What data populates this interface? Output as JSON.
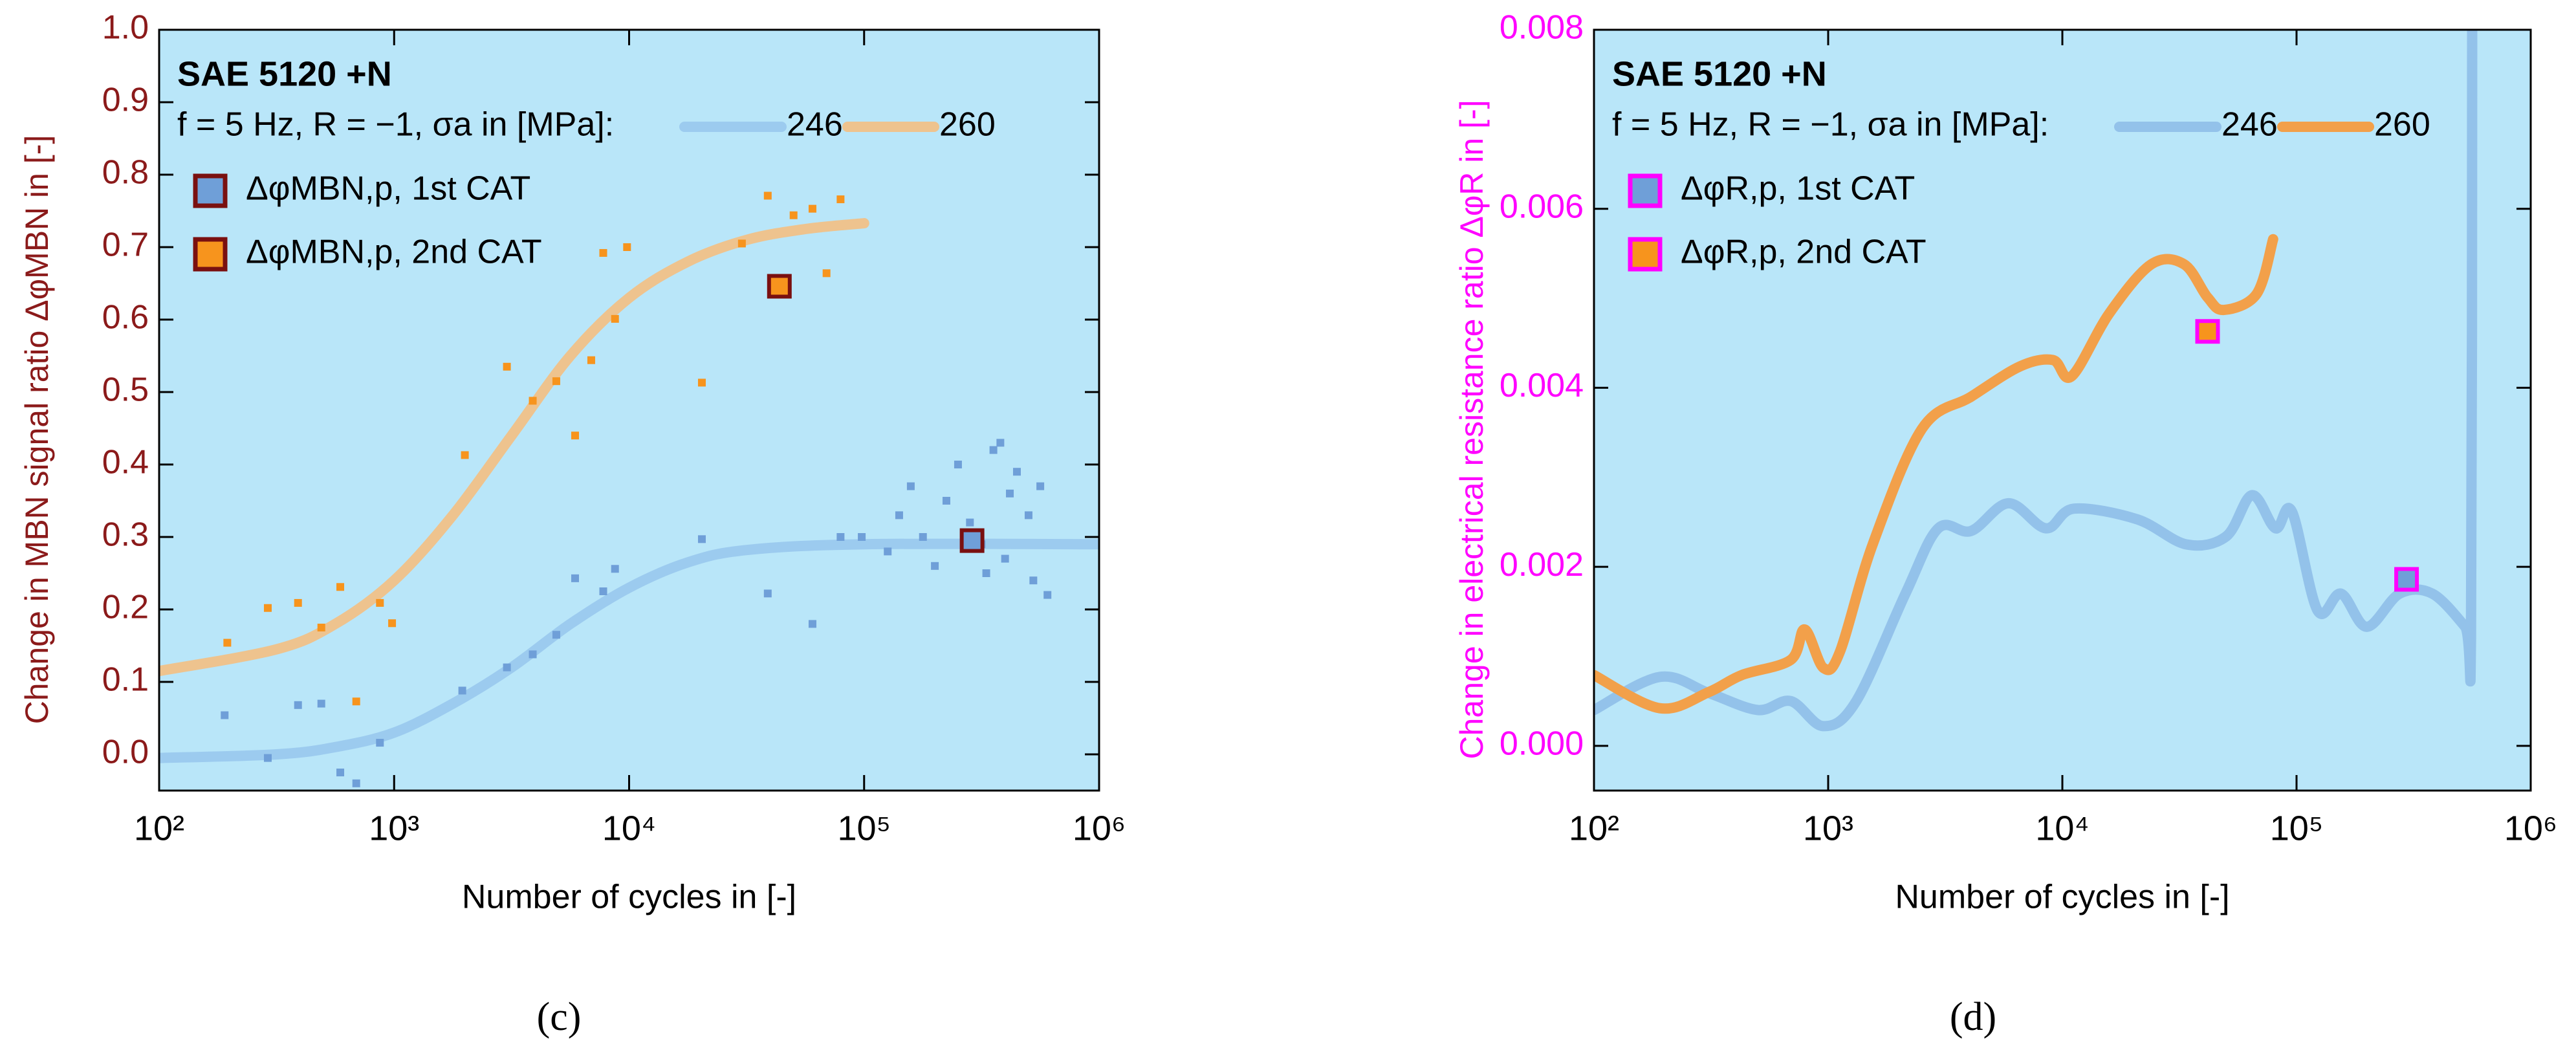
{
  "chart_data": [
    {
      "type": "scatter",
      "panel_label": "(c)",
      "legend_title": "SAE 5120 +N",
      "legend_text": "f = 5 Hz, R = −1, σa in [MPa]:",
      "x_label": "Number of cycles in [-]",
      "y_label": "Change in MBN signal ratio ΔφMBN in [-]",
      "y_color": "#8b1a1a",
      "marker_edge": "#7a1010",
      "background": "#b9e6f9",
      "xscale": "log",
      "xlim": [
        100,
        1000000
      ],
      "xticks": [
        {
          "value": 100,
          "label": "10²"
        },
        {
          "value": 1000,
          "label": "10³"
        },
        {
          "value": 10000,
          "label": "10⁴"
        },
        {
          "value": 100000,
          "label": "10⁵"
        },
        {
          "value": 1000000,
          "label": "10⁶"
        }
      ],
      "ylim": [
        -0.05,
        1.0
      ],
      "yticks": [
        {
          "value": 0,
          "label": "0.0"
        },
        0.1,
        0.2,
        0.3,
        0.4,
        0.5,
        0.6,
        0.7,
        0.8,
        0.9,
        {
          "value": 1,
          "label": "1.0"
        }
      ],
      "series": [
        {
          "name": "246",
          "style": "line",
          "color": "#9ccbef",
          "x": [
            100,
            316,
            562,
            1000,
            1778,
            3162,
            5623,
            10000,
            17783,
            31623,
            100000,
            1000000
          ],
          "values": [
            -0.005,
            0.0,
            0.01,
            0.03,
            0.07,
            0.12,
            0.18,
            0.23,
            0.265,
            0.282,
            0.29,
            0.29
          ]
        },
        {
          "name": "260",
          "style": "line",
          "color": "#eec38e",
          "x": [
            100,
            316,
            562,
            1000,
            1778,
            3162,
            5623,
            10000,
            17783,
            31623,
            56234,
            100000
          ],
          "values": [
            0.115,
            0.145,
            0.18,
            0.24,
            0.33,
            0.44,
            0.55,
            0.63,
            0.68,
            0.71,
            0.725,
            0.733
          ]
        },
        {
          "style": "points",
          "color": "#6f9fd8",
          "x": [
            190,
            290,
            390,
            490,
            590,
            690,
            870,
            1950,
            3020,
            3890,
            4900,
            5890,
            7760,
            8710,
            20400,
            38900,
            60300,
            79400,
            97700,
            126000,
            141000,
            158000,
            178000,
            200000,
            224000,
            251000,
            282000,
            316000,
            355000,
            398000,
            417000,
            447000,
            501000,
            525000,
            562000,
            603000,
            380000,
            331000
          ],
          "values": [
            0.054,
            -0.005,
            0.068,
            0.07,
            -0.025,
            -0.04,
            0.016,
            0.088,
            0.12,
            0.138,
            0.165,
            0.243,
            0.225,
            0.256,
            0.297,
            0.222,
            0.18,
            0.3,
            0.3,
            0.28,
            0.33,
            0.37,
            0.3,
            0.26,
            0.35,
            0.4,
            0.32,
            0.29,
            0.42,
            0.27,
            0.36,
            0.39,
            0.33,
            0.24,
            0.37,
            0.22,
            0.43,
            0.25
          ]
        },
        {
          "style": "points",
          "color": "#f7941d",
          "x": [
            195,
            290,
            390,
            490,
            590,
            690,
            870,
            980,
            2000,
            3020,
            3890,
            4900,
            5890,
            6900,
            7760,
            8710,
            9800,
            20400,
            30200,
            38900,
            50100,
            60300,
            69200,
            79400
          ],
          "values": [
            0.154,
            0.202,
            0.209,
            0.175,
            0.231,
            0.073,
            0.209,
            0.181,
            0.413,
            0.535,
            0.488,
            0.515,
            0.44,
            0.544,
            0.692,
            0.601,
            0.7,
            0.513,
            0.705,
            0.771,
            0.744,
            0.753,
            0.664,
            0.766
          ]
        },
        {
          "name": "ΔφMBN,p, 1st CAT",
          "style": "square",
          "color": "#6f9fd8",
          "x": [
            288000
          ],
          "values": [
            0.295
          ]
        },
        {
          "name": "ΔφMBN,p, 2nd CAT",
          "style": "square",
          "color": "#f7941d",
          "x": [
            43600
          ],
          "values": [
            0.646
          ]
        }
      ]
    },
    {
      "type": "scatter",
      "panel_label": "(d)",
      "legend_title": "SAE 5120 +N",
      "legend_text": "f = 5 Hz, R = −1, σa in [MPa]:",
      "x_label": "Number of cycles in [-]",
      "y_label": "Change in electrical resistance ratio ΔφR in [-]",
      "y_color": "#ff00ff",
      "marker_edge": "#ff00ff",
      "background": "#b9e6f9",
      "xscale": "log",
      "xlim": [
        100,
        1000000
      ],
      "xticks": [
        {
          "value": 100,
          "label": "10²"
        },
        {
          "value": 1000,
          "label": "10³"
        },
        {
          "value": 10000,
          "label": "10⁴"
        },
        {
          "value": 100000,
          "label": "10⁵"
        },
        {
          "value": 1000000,
          "label": "10⁶"
        }
      ],
      "ylim": [
        -0.0005,
        0.008
      ],
      "yticks": [
        {
          "value": 0,
          "label": "0.000"
        },
        {
          "value": 0.002,
          "label": "0.002"
        },
        {
          "value": 0.004,
          "label": "0.004"
        },
        {
          "value": 0.006,
          "label": "0.006"
        },
        {
          "value": 0.008,
          "label": "0.008"
        }
      ],
      "series": [
        {
          "name": "246",
          "style": "line",
          "color": "#93c2ea",
          "x": [
            100,
            191,
            309,
            501,
            692,
            955,
            1318,
            2138,
            2951,
            4074,
            5888,
            8511,
            11220,
            20893,
            33884,
            50119,
            64565,
            81283,
            95499,
            123027,
            154882,
            199526,
            275423,
            380189,
            524807,
            555904,
            562341
          ],
          "values": [
            0.0004,
            0.00077,
            0.00059,
            0.0004,
            0.0005,
            0.00022,
            0.0005,
            0.0017,
            0.00243,
            0.0024,
            0.00271,
            0.00243,
            0.00265,
            0.00253,
            0.00225,
            0.00234,
            0.0028,
            0.00243,
            0.00262,
            0.00151,
            0.0017,
            0.00133,
            0.0017,
            0.0017,
            0.00133,
            0.0012,
            0.008
          ]
        },
        {
          "name": "260",
          "style": "line",
          "color": "#f2a04a",
          "x": [
            100,
            191,
            309,
            427,
            692,
            794,
            955,
            1122,
            1549,
            2512,
            4074,
            6607,
            9120,
            10965,
            15849,
            23988,
            33113,
            41687,
            48978,
            67608,
            79433
          ],
          "values": [
            0.00079,
            0.00042,
            0.0006,
            0.00079,
            0.00096,
            0.0013,
            0.00087,
            0.00105,
            0.00225,
            0.00354,
            0.0039,
            0.00424,
            0.00431,
            0.00413,
            0.00483,
            0.00538,
            0.00538,
            0.00501,
            0.00487,
            0.00505,
            0.00566
          ]
        },
        {
          "name": "ΔφR,p, 1st CAT",
          "style": "square",
          "color": "#6f9fd8",
          "x": [
            295000
          ],
          "values": [
            0.00186
          ]
        },
        {
          "name": "ΔφR,p, 2nd CAT",
          "style": "square",
          "color": "#f7941d",
          "x": [
            41700
          ],
          "values": [
            0.00463
          ]
        }
      ]
    }
  ]
}
